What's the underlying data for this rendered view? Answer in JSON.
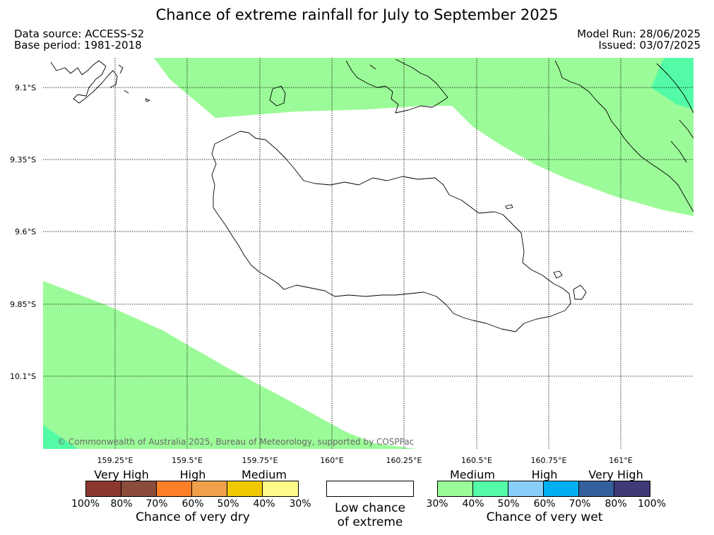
{
  "header": {
    "title": "Chance of extreme rainfall for July to September 2025",
    "data_source": "Data source: ACCESS-S2",
    "base_period": "Base period: 1981-2018",
    "model_run": "Model Run: 28/06/2025",
    "issued": "Issued: 03/07/2025"
  },
  "map": {
    "lat_labels": [
      "9.1°S",
      "9.35°S",
      "9.6°S",
      "9.85°S",
      "10.1°S"
    ],
    "lon_labels": [
      "159.25°E",
      "159.5°E",
      "159.75°E",
      "160°E",
      "160.25°E",
      "160.5°E",
      "160.75°E",
      "161°E"
    ],
    "copyright": "© Commonwealth of Australia 2025, Bureau of Meteorology, supported by COSPPac",
    "colors": {
      "medium_wet": "#9bfb98",
      "high_wet": "#54fba6",
      "coast": "#000000",
      "grid": "#000000"
    }
  },
  "legend": {
    "dry": {
      "labels": [
        "Very High",
        "High",
        "Medium"
      ],
      "colors": [
        "#8b3830",
        "#8b4c3c",
        "#ff7f27",
        "#f0a04b",
        "#f0c800",
        "#fff88a"
      ],
      "percents": [
        "100%",
        "80%",
        "70%",
        "60%",
        "50%",
        "40%",
        "30%"
      ],
      "title": "Chance of very dry"
    },
    "low": {
      "line1": "Low chance",
      "line2": "of extreme"
    },
    "wet": {
      "labels": [
        "Medium",
        "High",
        "Very High"
      ],
      "colors": [
        "#9bfb98",
        "#54fba6",
        "#87cefa",
        "#00b0f0",
        "#335f9c",
        "#3f3a78"
      ],
      "percents": [
        "30%",
        "40%",
        "50%",
        "60%",
        "70%",
        "80%",
        "100%"
      ],
      "title": "Chance of very wet"
    }
  }
}
